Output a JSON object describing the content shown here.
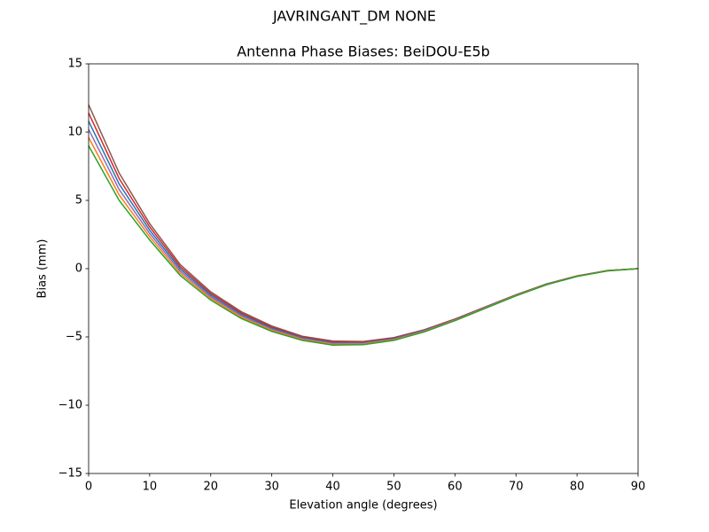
{
  "chart_data": {
    "type": "line",
    "suptitle": "JAVRINGANT_DM   NONE",
    "title": "Antenna Phase Biases: BeiDOU-E5b",
    "xlabel": "Elevation angle (degrees)",
    "ylabel": "Bias (mm)",
    "x": [
      0,
      5,
      10,
      15,
      20,
      25,
      30,
      35,
      40,
      45,
      50,
      55,
      60,
      65,
      70,
      75,
      80,
      85,
      90
    ],
    "xlim": [
      0,
      90
    ],
    "xticks": [
      0,
      10,
      20,
      30,
      40,
      50,
      60,
      70,
      80,
      90
    ],
    "ylim": [
      -15,
      15
    ],
    "yticks": [
      {
        "value": -15,
        "label": "−15"
      },
      {
        "value": -10,
        "label": "−10"
      },
      {
        "value": -5,
        "label": "−5"
      },
      0,
      5,
      10,
      15
    ],
    "grid": false,
    "series": [
      {
        "color": "#8c564b",
        "values": [
          12.0,
          7.0,
          3.3,
          0.3,
          -1.7,
          -3.15,
          -4.2,
          -4.95,
          -5.3,
          -5.33,
          -5.05,
          -4.47,
          -3.69,
          -2.8,
          -1.91,
          -1.12,
          -0.53,
          -0.14,
          0
        ]
      },
      {
        "color": "#d62728",
        "values": [
          11.4,
          6.6,
          3.06,
          0.14,
          -1.82,
          -3.25,
          -4.28,
          -5.01,
          -5.36,
          -5.38,
          -5.09,
          -4.5,
          -3.71,
          -2.82,
          -1.93,
          -1.13,
          -0.54,
          -0.14,
          0
        ]
      },
      {
        "color": "#1f77b4",
        "values": [
          10.8,
          6.2,
          2.82,
          -0.02,
          -1.94,
          -3.35,
          -4.36,
          -5.07,
          -5.42,
          -5.43,
          -5.13,
          -4.53,
          -3.74,
          -2.84,
          -1.94,
          -1.14,
          -0.55,
          -0.15,
          0
        ]
      },
      {
        "color": "#9467bd",
        "values": [
          10.2,
          5.8,
          2.58,
          -0.18,
          -2.06,
          -3.45,
          -4.44,
          -5.13,
          -5.48,
          -5.47,
          -5.17,
          -4.57,
          -3.76,
          -2.86,
          -1.96,
          -1.16,
          -0.55,
          -0.15,
          0
        ]
      },
      {
        "color": "#ff7f0e",
        "values": [
          9.6,
          5.4,
          2.34,
          -0.34,
          -2.18,
          -3.55,
          -4.52,
          -5.19,
          -5.54,
          -5.52,
          -5.21,
          -4.6,
          -3.79,
          -2.88,
          -1.97,
          -1.17,
          -0.56,
          -0.16,
          0
        ]
      },
      {
        "color": "#2ca02c",
        "values": [
          9.0,
          5.0,
          2.1,
          -0.5,
          -2.3,
          -3.65,
          -4.6,
          -5.25,
          -5.6,
          -5.57,
          -5.25,
          -4.63,
          -3.81,
          -2.9,
          -1.99,
          -1.18,
          -0.57,
          -0.16,
          0
        ]
      }
    ]
  }
}
